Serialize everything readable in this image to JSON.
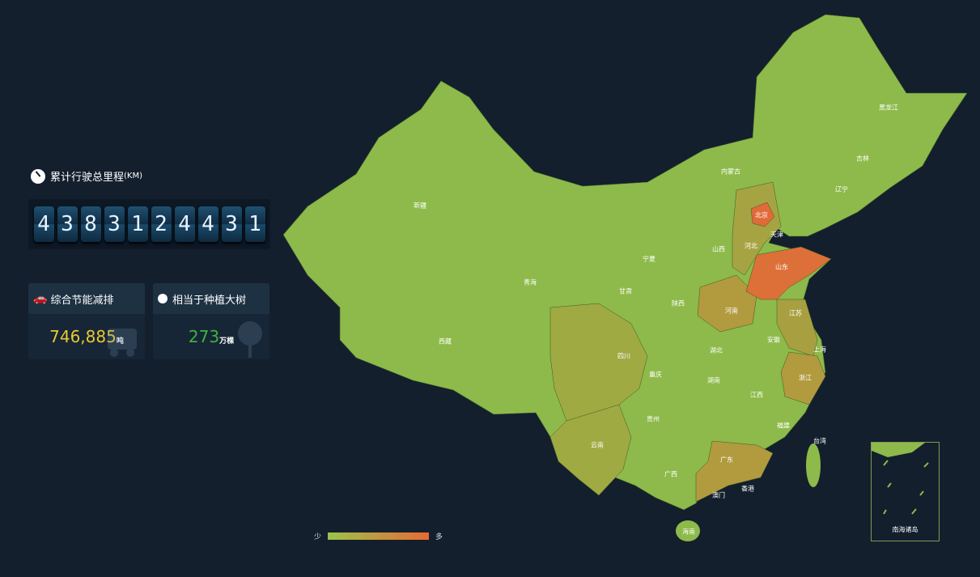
{
  "mileage": {
    "title": "累计行驶总里程",
    "unit": "(KM)",
    "digits": [
      "4",
      "3",
      "8",
      "3",
      "1",
      "2",
      "4",
      "4",
      "3",
      "1"
    ]
  },
  "emission": {
    "title": "综合节能减排",
    "value": "746,885",
    "unit": "吨",
    "color": "#e8c832",
    "icon": "car-icon"
  },
  "trees": {
    "title": "相当于种植大树",
    "value": "273",
    "unit": "万棵",
    "color": "#3cb43c",
    "icon": "tree-icon"
  },
  "map": {
    "colors": {
      "low": "#9cc24a",
      "mid": "#a99d40",
      "high": "#e76a35"
    },
    "provinces": [
      "黑龙江",
      "吉林",
      "辽宁",
      "内蒙古",
      "北京",
      "天津",
      "河北",
      "山西",
      "山东",
      "宁夏",
      "甘肃",
      "陕西",
      "新疆",
      "青海",
      "西藏",
      "四川",
      "重庆",
      "河南",
      "江苏",
      "安徽",
      "上海",
      "湖北",
      "浙江",
      "湖南",
      "江西",
      "贵州",
      "云南",
      "广西",
      "广东",
      "福建",
      "台湾",
      "澳门",
      "香港",
      "海南"
    ],
    "inset_label": "南海诸岛"
  },
  "legend": {
    "low": "少",
    "high": "多"
  }
}
